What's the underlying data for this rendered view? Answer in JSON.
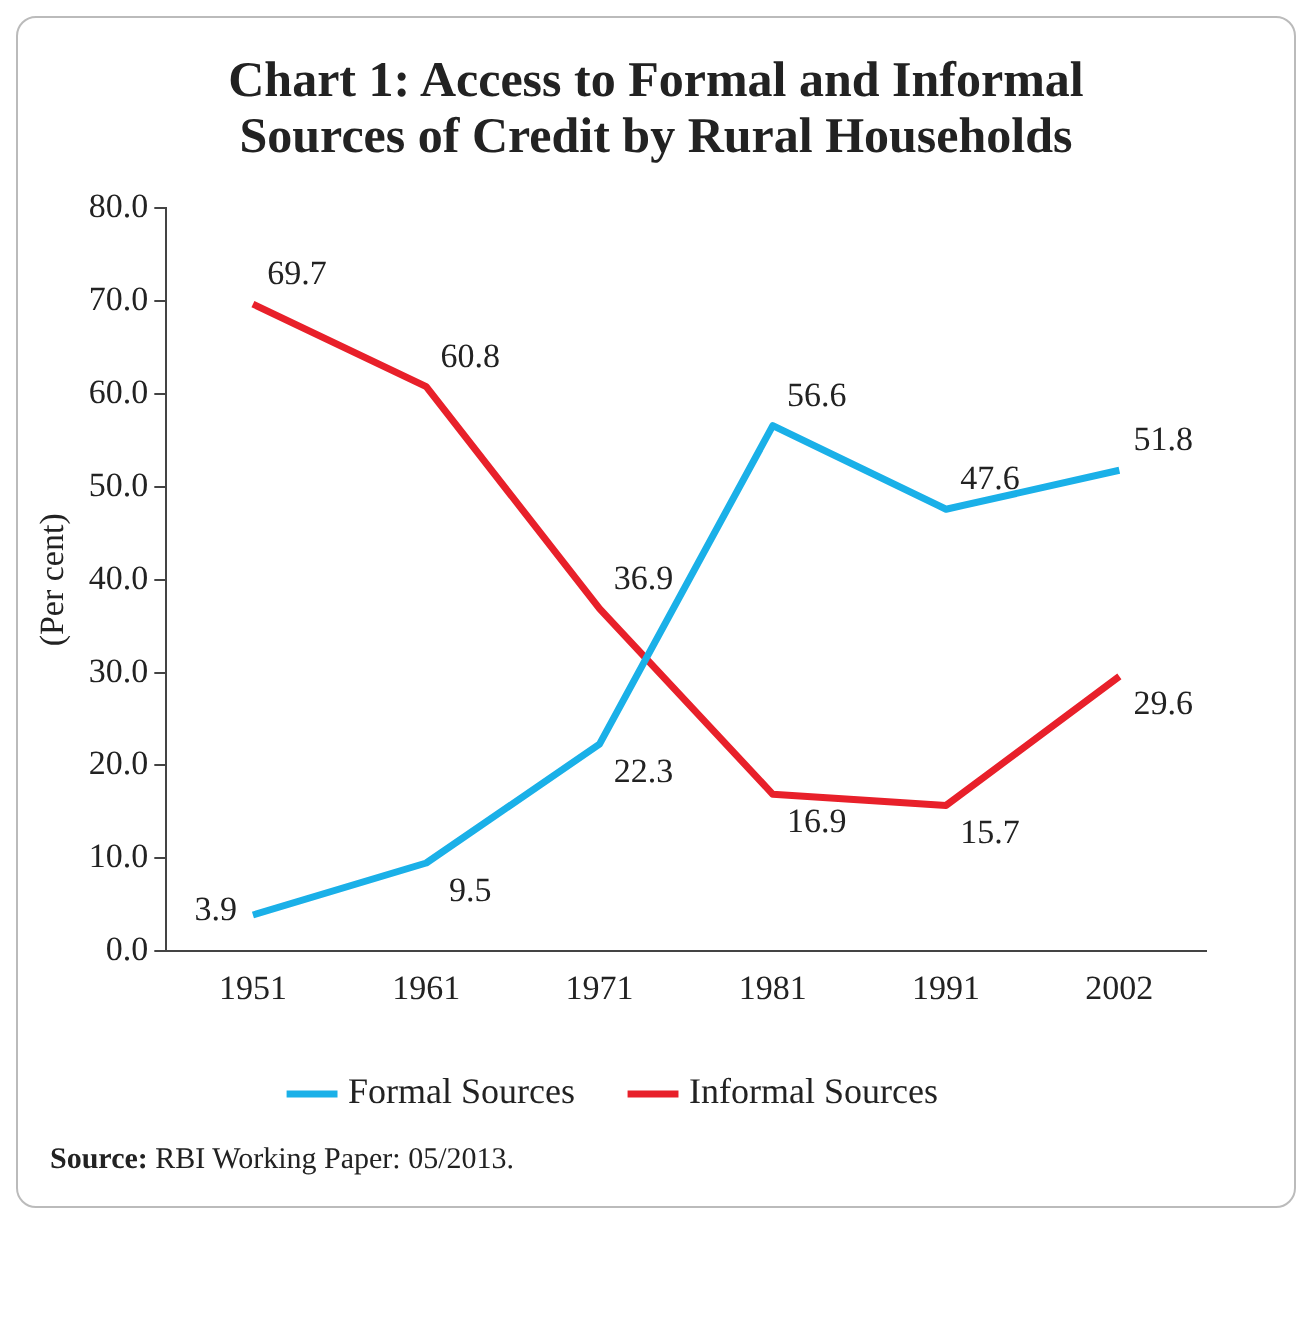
{
  "chart_data": {
    "type": "line",
    "title": "Chart 1: Access to Formal and Informal Sources of Credit by Rural Households",
    "ylabel": "(Per cent)",
    "categories": [
      "1951",
      "1961",
      "1971",
      "1981",
      "1991",
      "2002"
    ],
    "series": [
      {
        "name": "Formal Sources",
        "color": "#1ab0e8",
        "values": [
          3.9,
          9.5,
          22.3,
          56.6,
          47.6,
          51.8
        ]
      },
      {
        "name": "Informal Sources",
        "color": "#e8202a",
        "values": [
          69.7,
          60.8,
          36.9,
          16.9,
          15.7,
          29.6
        ]
      }
    ],
    "ylim": [
      0,
      80
    ],
    "yticks": [
      {
        "value": 0,
        "label": "0.0"
      },
      {
        "value": 10,
        "label": "10.0"
      },
      {
        "value": 20,
        "label": "20.0"
      },
      {
        "value": 30,
        "label": "30.0"
      },
      {
        "value": 40,
        "label": "40.0"
      },
      {
        "value": 50,
        "label": "50.0"
      },
      {
        "value": 60,
        "label": "60.0"
      },
      {
        "value": 70,
        "label": "70.0"
      },
      {
        "value": 80,
        "label": "80.0"
      }
    ],
    "grid": false,
    "legend": "bottom",
    "marker": "none",
    "line_style": "solid",
    "data_labels": true,
    "annotations": [
      "Source: RBI Working Paper: 05/2013."
    ]
  }
}
